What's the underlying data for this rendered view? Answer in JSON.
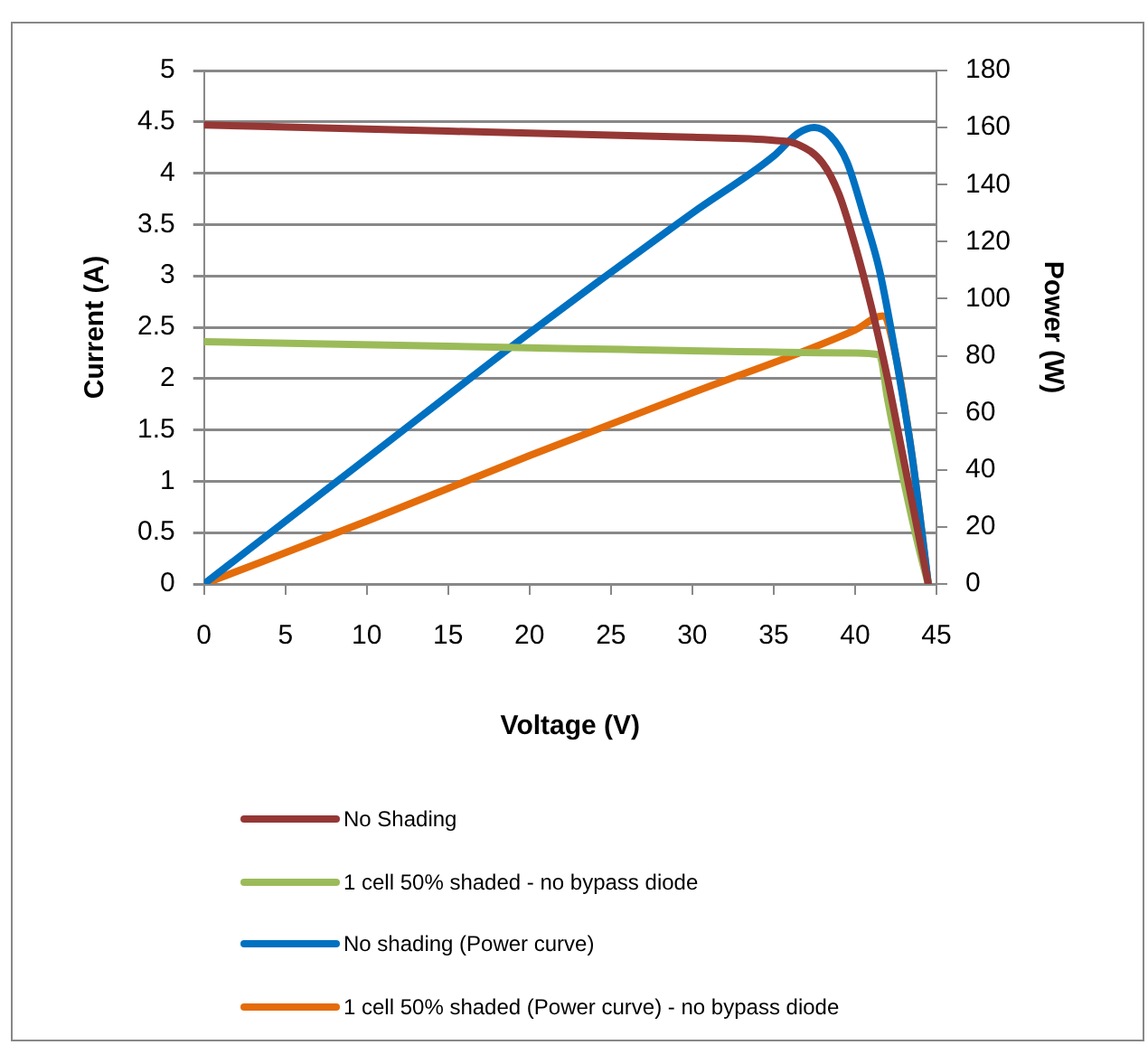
{
  "chart_data": {
    "type": "line",
    "xlabel": "Voltage (V)",
    "ylabel": "Current (A)",
    "y2label": "Power (W)",
    "xlim": [
      0,
      45
    ],
    "xticks": [
      0,
      5,
      10,
      15,
      20,
      25,
      30,
      35,
      40,
      45
    ],
    "ylim": [
      0,
      5
    ],
    "yticks": [
      0,
      0.5,
      1,
      1.5,
      2,
      2.5,
      3,
      3.5,
      4,
      4.5,
      5
    ],
    "y2lim": [
      0,
      180
    ],
    "y2ticks": [
      0,
      20,
      40,
      60,
      80,
      100,
      120,
      140,
      160,
      180
    ],
    "grid": "y",
    "legend": "bottom",
    "marker": "none",
    "line_style": "solid",
    "series": [
      {
        "name": "No Shading",
        "color": "#953735",
        "axis": "y",
        "x": [
          0,
          10,
          20,
          30,
          35,
          36.5,
          38,
          39,
          40,
          41,
          42,
          43,
          44,
          44.5
        ],
        "values": [
          4.47,
          4.43,
          4.39,
          4.35,
          4.32,
          4.28,
          4.1,
          3.8,
          3.3,
          2.7,
          2.0,
          1.2,
          0.4,
          0
        ]
      },
      {
        "name": "1 cell 50% shaded - no bypass diode",
        "color": "#9bbb59",
        "axis": "y",
        "x": [
          0,
          20,
          40,
          41.5,
          42,
          43,
          44,
          44.5
        ],
        "values": [
          2.36,
          2.3,
          2.25,
          2.23,
          1.8,
          1.0,
          0.3,
          0
        ]
      },
      {
        "name": "No shading (Power curve)",
        "color": "#0070c0",
        "axis": "y2",
        "x": [
          0,
          10,
          20,
          30,
          35,
          36.5,
          37.5,
          38.5,
          39.5,
          40.5,
          41.5,
          42.5,
          43.5,
          44.5
        ],
        "values": [
          0,
          44,
          88,
          130,
          150,
          158,
          160,
          157,
          148,
          130,
          110,
          80,
          45,
          0
        ]
      },
      {
        "name": "1 cell 50% shaded (Power curve) - no bypass diode",
        "color": "#e46c0a",
        "axis": "y2",
        "x": [
          0,
          10,
          20,
          30,
          40,
          41.7,
          42.5,
          43.5,
          44.5
        ],
        "values": [
          0,
          22,
          45,
          67,
          89,
          94,
          80,
          45,
          0
        ]
      }
    ]
  }
}
